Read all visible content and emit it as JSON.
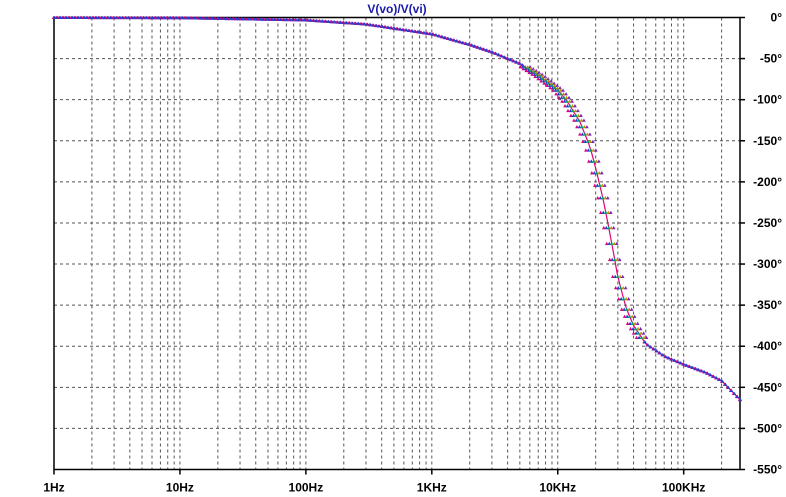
{
  "chart_data": {
    "type": "line",
    "title": "V(vo)/V(vi)",
    "title_color": "#1a1aa8",
    "x_scale": "log",
    "xlim": [
      1,
      280000
    ],
    "ylim": [
      -550,
      0
    ],
    "grid": true,
    "grid_style": "dashed",
    "x_ticks": [
      {
        "value": 1,
        "label": "1Hz"
      },
      {
        "value": 10,
        "label": "10Hz"
      },
      {
        "value": 100,
        "label": "100Hz"
      },
      {
        "value": 1000,
        "label": "1KHz"
      },
      {
        "value": 10000,
        "label": "10KHz"
      },
      {
        "value": 100000,
        "label": "100KHz"
      }
    ],
    "y_ticks": [
      {
        "value": 0,
        "label": "0°"
      },
      {
        "value": -50,
        "label": "-50°"
      },
      {
        "value": -100,
        "label": "-100°"
      },
      {
        "value": -150,
        "label": "-150°"
      },
      {
        "value": -200,
        "label": "-200°"
      },
      {
        "value": -250,
        "label": "-250°"
      },
      {
        "value": -300,
        "label": "-300°"
      },
      {
        "value": -350,
        "label": "-350°"
      },
      {
        "value": -400,
        "label": "-400°"
      },
      {
        "value": -450,
        "label": "-450°"
      },
      {
        "value": -500,
        "label": "-500°"
      },
      {
        "value": -550,
        "label": "-550°"
      }
    ],
    "series_colors": [
      "#e0007a",
      "#2040d0",
      "#00a070",
      "#c09000",
      "#8020c0"
    ],
    "series": [
      {
        "x": [
          1,
          10,
          100,
          300,
          1000,
          2000,
          3000,
          5000,
          7000,
          10000,
          12000,
          15000,
          18000,
          20000,
          23000,
          25000,
          28000,
          30000,
          35000,
          40000,
          50000,
          70000,
          100000,
          150000,
          200000,
          280000
        ],
        "y": [
          0,
          -0.3,
          -3,
          -8,
          -20,
          -33,
          -42,
          -56,
          -70,
          -88,
          -103,
          -127,
          -157,
          -183,
          -222,
          -250,
          -290,
          -316,
          -354,
          -375,
          -397,
          -412,
          -422,
          -432,
          -442,
          -465
        ]
      }
    ]
  }
}
